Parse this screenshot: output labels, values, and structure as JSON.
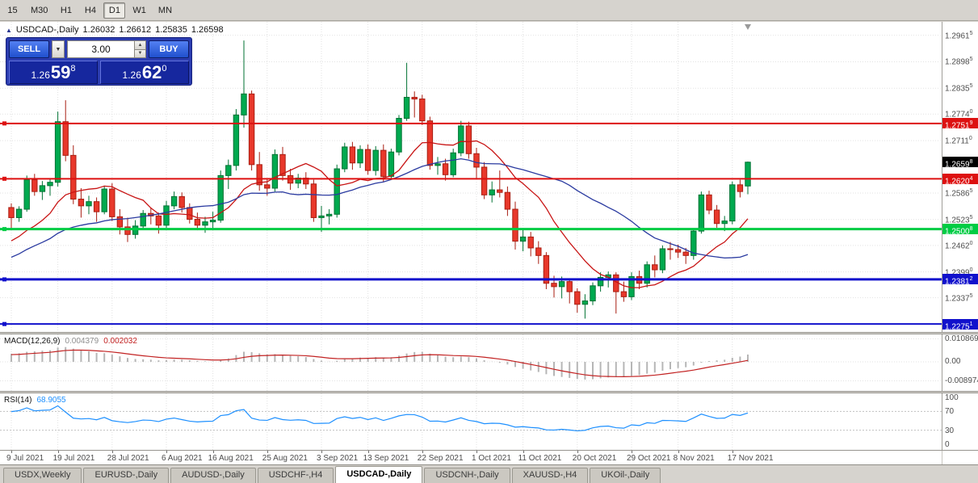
{
  "toolbar": {
    "periods": [
      "15",
      "M30",
      "H1",
      "H4",
      "D1",
      "W1",
      "MN"
    ],
    "active": "D1"
  },
  "title": {
    "collapse_icon": "▲",
    "symbol": "USDCAD-,Daily",
    "open": "1.26032",
    "high": "1.26612",
    "low": "1.25835",
    "close": "1.26598"
  },
  "one_click": {
    "sell_label": "SELL",
    "buy_label": "BUY",
    "volume": "3.00",
    "dropdown_icon": "▼",
    "spin_up_icon": "▲",
    "spin_down_icon": "▼",
    "sell_price": {
      "figure": "1.26",
      "pips": "59",
      "pipette": "8"
    },
    "buy_price": {
      "figure": "1.26",
      "pips": "62",
      "pipette": "0"
    }
  },
  "tabs": {
    "items": [
      "USDX,Weekly",
      "EURUSD-,Daily",
      "AUDUSD-,Daily",
      "USDCHF-,H4",
      "USDCAD-,Daily",
      "USDCNH-,Daily",
      "XAUUSD-,H4",
      "UKOil-,Daily"
    ],
    "active": "USDCAD-,Daily"
  },
  "chart_data": {
    "type": "candlestick",
    "symbol": "USDCAD",
    "timeframe": "Daily",
    "grid_color": "#e2e2e2",
    "candle_colors": {
      "up": "#00a94f",
      "up_border": "#007233",
      "down": "#e8382b",
      "down_border": "#a81e12"
    },
    "price_axis": {
      "min": 1.225625,
      "max": 1.298,
      "tick_labels": [
        "1.29615",
        "1.28985",
        "1.28355",
        "1.27740",
        "1.27110",
        "1.25865",
        "1.25235",
        "1.24620",
        "1.23990",
        "1.23375"
      ]
    },
    "x_labels": [
      {
        "index": 0,
        "label": "9 Jul 2021"
      },
      {
        "index": 6,
        "label": "19 Jul 2021"
      },
      {
        "index": 13,
        "label": "28 Jul 2021"
      },
      {
        "index": 20,
        "label": "6 Aug 2021"
      },
      {
        "index": 26,
        "label": "16 Aug 2021"
      },
      {
        "index": 33,
        "label": "25 Aug 2021"
      },
      {
        "index": 40,
        "label": "3 Sep 2021"
      },
      {
        "index": 46,
        "label": "13 Sep 2021"
      },
      {
        "index": 53,
        "label": "22 Sep 2021"
      },
      {
        "index": 60,
        "label": "1 Oct 2021"
      },
      {
        "index": 66,
        "label": "11 Oct 2021"
      },
      {
        "index": 73,
        "label": "20 Oct 2021"
      },
      {
        "index": 80,
        "label": "29 Oct 2021"
      },
      {
        "index": 86,
        "label": "8 Nov 2021"
      },
      {
        "index": 93,
        "label": "17 Nov 2021"
      }
    ],
    "horizontal_lines": [
      {
        "price": 1.27519,
        "label": "1.27519",
        "color": "#dd1111",
        "width": 2
      },
      {
        "price": 1.26204,
        "label": "1.26204",
        "color": "#dd1111",
        "width": 2
      },
      {
        "price": 1.25008,
        "label": "1.25008",
        "color": "#00cc44",
        "width": 3
      },
      {
        "price": 1.23812,
        "label": "1.23812",
        "color": "#1111cc",
        "width": 3
      },
      {
        "price": 1.22751,
        "label": "1.22751",
        "color": "#1111cc",
        "width": 2
      }
    ],
    "last_price": {
      "value": 1.26598,
      "label": "1.26598",
      "color": "#000000"
    },
    "moving_averages": [
      {
        "type": "sma",
        "period": 12,
        "color": "#c81414"
      },
      {
        "type": "sma",
        "period": 30,
        "color": "#2a3aa0"
      }
    ],
    "seed_closes": [
      1.229,
      1.231,
      1.2302,
      1.233,
      1.2358,
      1.2342,
      1.238,
      1.2408,
      1.2396,
      1.2428,
      1.2458,
      1.2478,
      1.2455,
      1.244,
      1.2468,
      1.2452,
      1.2436,
      1.246,
      1.2441,
      1.2422,
      1.2446,
      1.2464,
      1.2442,
      1.2412,
      1.2438,
      1.247,
      1.2492,
      1.2508,
      1.253,
      1.2522
    ],
    "candles": [
      [
        1.2552,
        1.2562,
        1.25,
        1.2528
      ],
      [
        1.2528,
        1.2555,
        1.2518,
        1.2548
      ],
      [
        1.2548,
        1.2628,
        1.2542,
        1.2618
      ],
      [
        1.2618,
        1.2632,
        1.258,
        1.259
      ],
      [
        1.259,
        1.2615,
        1.257,
        1.2604
      ],
      [
        1.2604,
        1.2622,
        1.258,
        1.2612
      ],
      [
        1.2612,
        1.278,
        1.2602,
        1.2756
      ],
      [
        1.2756,
        1.2807,
        1.2662,
        1.2676
      ],
      [
        1.2676,
        1.27,
        1.256,
        1.2572
      ],
      [
        1.2572,
        1.2598,
        1.2528,
        1.2556
      ],
      [
        1.2556,
        1.258,
        1.2536,
        1.2566
      ],
      [
        1.2566,
        1.2576,
        1.2518,
        1.2542
      ],
      [
        1.2542,
        1.2604,
        1.2536,
        1.2596
      ],
      [
        1.2596,
        1.261,
        1.252,
        1.253
      ],
      [
        1.253,
        1.2548,
        1.2488,
        1.2506
      ],
      [
        1.2506,
        1.2528,
        1.247,
        1.2488
      ],
      [
        1.2488,
        1.2522,
        1.2478,
        1.2508
      ],
      [
        1.2508,
        1.2546,
        1.25,
        1.2538
      ],
      [
        1.2538,
        1.2552,
        1.2512,
        1.2532
      ],
      [
        1.2532,
        1.254,
        1.249,
        1.251
      ],
      [
        1.251,
        1.2568,
        1.2504,
        1.2556
      ],
      [
        1.2556,
        1.259,
        1.2548,
        1.2578
      ],
      [
        1.2578,
        1.2588,
        1.254,
        1.2552
      ],
      [
        1.2552,
        1.2562,
        1.2514,
        1.2524
      ],
      [
        1.2524,
        1.254,
        1.2498,
        1.251
      ],
      [
        1.251,
        1.253,
        1.2492,
        1.2518
      ],
      [
        1.2518,
        1.2542,
        1.2502,
        1.2522
      ],
      [
        1.2522,
        1.264,
        1.2516,
        1.2628
      ],
      [
        1.2628,
        1.2666,
        1.2596,
        1.2652
      ],
      [
        1.2652,
        1.2786,
        1.264,
        1.2772
      ],
      [
        1.2772,
        1.2949,
        1.2742,
        1.2822
      ],
      [
        1.2822,
        1.283,
        1.264,
        1.2654
      ],
      [
        1.2654,
        1.2684,
        1.2592,
        1.2606
      ],
      [
        1.2606,
        1.2622,
        1.258,
        1.2598
      ],
      [
        1.2598,
        1.269,
        1.259,
        1.2678
      ],
      [
        1.2678,
        1.2696,
        1.2616,
        1.2628
      ],
      [
        1.2628,
        1.2644,
        1.2594,
        1.261
      ],
      [
        1.261,
        1.2632,
        1.2598,
        1.2622
      ],
      [
        1.2622,
        1.2636,
        1.2596,
        1.2608
      ],
      [
        1.2608,
        1.2618,
        1.2518,
        1.2528
      ],
      [
        1.2528,
        1.2556,
        1.2494,
        1.2532
      ],
      [
        1.2532,
        1.2548,
        1.2512,
        1.2536
      ],
      [
        1.2536,
        1.2654,
        1.2528,
        1.2644
      ],
      [
        1.2644,
        1.2706,
        1.2636,
        1.2696
      ],
      [
        1.2696,
        1.2708,
        1.2642,
        1.2658
      ],
      [
        1.2658,
        1.27,
        1.2646,
        1.269
      ],
      [
        1.269,
        1.2702,
        1.263,
        1.264
      ],
      [
        1.264,
        1.2698,
        1.2628,
        1.2688
      ],
      [
        1.2688,
        1.2702,
        1.2612,
        1.2626
      ],
      [
        1.2626,
        1.2692,
        1.2618,
        1.2684
      ],
      [
        1.2684,
        1.2772,
        1.2676,
        1.2764
      ],
      [
        1.2764,
        1.2896,
        1.2758,
        1.2814
      ],
      [
        1.2814,
        1.2828,
        1.2766,
        1.281
      ],
      [
        1.281,
        1.282,
        1.2748,
        1.2758
      ],
      [
        1.2758,
        1.2768,
        1.2642,
        1.2652
      ],
      [
        1.2652,
        1.2672,
        1.263,
        1.2656
      ],
      [
        1.2656,
        1.2668,
        1.2616,
        1.263
      ],
      [
        1.263,
        1.2692,
        1.2624,
        1.2682
      ],
      [
        1.2682,
        1.2758,
        1.2674,
        1.2746
      ],
      [
        1.2746,
        1.2756,
        1.2668,
        1.268
      ],
      [
        1.268,
        1.2694,
        1.2622,
        1.2648
      ],
      [
        1.2648,
        1.266,
        1.2572,
        1.2582
      ],
      [
        1.2582,
        1.2614,
        1.2564,
        1.2594
      ],
      [
        1.2594,
        1.264,
        1.2576,
        1.2588
      ],
      [
        1.2588,
        1.2602,
        1.2532,
        1.2548
      ],
      [
        1.2548,
        1.2566,
        1.2452,
        1.2472
      ],
      [
        1.2472,
        1.25,
        1.2448,
        1.2482
      ],
      [
        1.2482,
        1.2494,
        1.2436,
        1.2456
      ],
      [
        1.2456,
        1.2472,
        1.2418,
        1.2438
      ],
      [
        1.2438,
        1.2446,
        1.2358,
        1.2372
      ],
      [
        1.2372,
        1.239,
        1.2338,
        1.2364
      ],
      [
        1.2364,
        1.2388,
        1.2336,
        1.2376
      ],
      [
        1.2376,
        1.2382,
        1.2324,
        1.2352
      ],
      [
        1.2352,
        1.236,
        1.2302,
        1.2322
      ],
      [
        1.2322,
        1.2346,
        1.2288,
        1.233
      ],
      [
        1.233,
        1.2374,
        1.232,
        1.2366
      ],
      [
        1.2366,
        1.2398,
        1.2352,
        1.2386
      ],
      [
        1.2386,
        1.24,
        1.2362,
        1.2392
      ],
      [
        1.2392,
        1.2398,
        1.23,
        1.2352
      ],
      [
        1.2352,
        1.2376,
        1.2328,
        1.234
      ],
      [
        1.234,
        1.2398,
        1.2332,
        1.2388
      ],
      [
        1.2388,
        1.2402,
        1.2358,
        1.2372
      ],
      [
        1.2372,
        1.2424,
        1.2362,
        1.2416
      ],
      [
        1.2416,
        1.2438,
        1.2386,
        1.2404
      ],
      [
        1.2404,
        1.2462,
        1.2396,
        1.2454
      ],
      [
        1.2454,
        1.247,
        1.2428,
        1.2452
      ],
      [
        1.2452,
        1.2464,
        1.2432,
        1.2446
      ],
      [
        1.2446,
        1.2456,
        1.2418,
        1.2438
      ],
      [
        1.2438,
        1.2502,
        1.2428,
        1.2496
      ],
      [
        1.2496,
        1.259,
        1.249,
        1.2582
      ],
      [
        1.2582,
        1.2592,
        1.2536,
        1.2546
      ],
      [
        1.2546,
        1.2558,
        1.2504,
        1.2514
      ],
      [
        1.2514,
        1.2532,
        1.2496,
        1.252
      ],
      [
        1.252,
        1.2614,
        1.2512,
        1.2606
      ],
      [
        1.2606,
        1.2618,
        1.2576,
        1.259
      ],
      [
        1.26032,
        1.26612,
        1.25835,
        1.26598
      ]
    ],
    "indicators": {
      "macd": {
        "title": "MACD(12,26,9)",
        "value_main": "0.004379",
        "value_signal": "0.002032",
        "fast": 12,
        "slow": 26,
        "signal": 9,
        "axis_labels": [
          "0.010869",
          "0.00",
          "-0.008974"
        ],
        "histogram_color": "#b6b6b6",
        "signal_color": "#c22222"
      },
      "rsi": {
        "title": "RSI(14)",
        "value": "68.9055",
        "period": 14,
        "levels": [
          70,
          30
        ],
        "axis_labels": [
          "100",
          "70",
          "30",
          "0"
        ],
        "line_color": "#1e90ff",
        "level_color": "#c0c0c0"
      }
    }
  }
}
